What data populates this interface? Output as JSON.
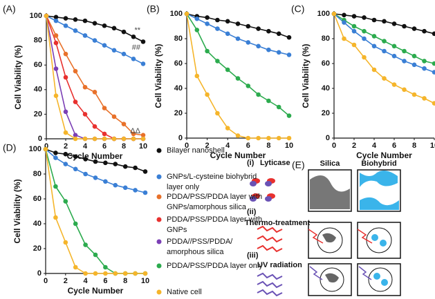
{
  "chart_data": [
    {
      "type": "line",
      "label": "(A)",
      "xlabel": "Cycle Number",
      "ylabel": "Cell Viability (%)",
      "x": [
        0,
        1,
        2,
        3,
        4,
        5,
        6,
        7,
        8,
        9,
        10
      ],
      "xlim": [
        0,
        10
      ],
      "ylim": [
        0,
        100
      ],
      "xticks": [
        0,
        2,
        4,
        6,
        8,
        10
      ],
      "yticks": [
        0,
        20,
        40,
        60,
        80,
        100
      ],
      "annotations": [
        "**",
        "##",
        "ΔΔ"
      ],
      "series": [
        {
          "color": "#111111",
          "values": [
            100,
            99,
            98,
            97,
            96,
            94,
            92,
            90,
            87,
            83,
            79
          ]
        },
        {
          "color": "#3a7fd5",
          "values": [
            100,
            96,
            92,
            88,
            84,
            80,
            76,
            72,
            69,
            65,
            61
          ]
        },
        {
          "color": "#e8712a",
          "values": [
            100,
            84,
            69,
            55,
            42,
            38,
            25,
            18,
            12,
            4,
            3
          ]
        },
        {
          "color": "#e8312f",
          "values": [
            100,
            78,
            50,
            30,
            20,
            10,
            4,
            0,
            0,
            0,
            0
          ]
        },
        {
          "color": "#7b3fb5",
          "values": [
            100,
            57,
            22,
            3,
            0,
            0,
            0,
            0,
            0,
            0,
            0
          ]
        },
        {
          "color": "#f5b52b",
          "values": [
            100,
            35,
            5,
            0,
            0,
            0,
            0,
            0,
            0,
            0,
            0
          ]
        }
      ]
    },
    {
      "type": "line",
      "label": "(B)",
      "xlabel": "Cycle Number",
      "ylabel": "Cell Viability (%)",
      "x": [
        0,
        1,
        2,
        3,
        4,
        5,
        6,
        7,
        8,
        9,
        10
      ],
      "xlim": [
        0,
        10
      ],
      "ylim": [
        0,
        100
      ],
      "xticks": [
        0,
        2,
        4,
        6,
        8,
        10
      ],
      "yticks": [
        0,
        20,
        40,
        60,
        80,
        100
      ],
      "series": [
        {
          "color": "#111111",
          "values": [
            100,
            98,
            97,
            95,
            94,
            92,
            90,
            88,
            86,
            84,
            81
          ]
        },
        {
          "color": "#3a7fd5",
          "values": [
            100,
            96,
            92,
            88,
            84,
            80,
            77,
            74,
            71,
            69,
            67
          ]
        },
        {
          "color": "#2cab4e",
          "values": [
            100,
            87,
            70,
            62,
            55,
            48,
            42,
            35,
            30,
            25,
            18
          ]
        },
        {
          "color": "#f5b52b",
          "values": [
            100,
            50,
            35,
            20,
            8,
            2,
            0,
            0,
            0,
            0,
            0
          ]
        }
      ]
    },
    {
      "type": "line",
      "label": "(C)",
      "xlabel": "Cycle Number",
      "ylabel": "Cell Viability (%)",
      "x": [
        0,
        1,
        2,
        3,
        4,
        5,
        6,
        7,
        8,
        9,
        10
      ],
      "xlim": [
        0,
        10
      ],
      "ylim": [
        0,
        100
      ],
      "xticks": [
        0,
        2,
        4,
        6,
        8,
        10
      ],
      "yticks": [
        0,
        20,
        40,
        60,
        80,
        100
      ],
      "series": [
        {
          "color": "#111111",
          "values": [
            100,
            99,
            98,
            97,
            95,
            94,
            92,
            90,
            88,
            86,
            84
          ]
        },
        {
          "color": "#2cab4e",
          "values": [
            100,
            95,
            90,
            86,
            82,
            78,
            74,
            70,
            66,
            62,
            60
          ]
        },
        {
          "color": "#3a7fd5",
          "values": [
            100,
            93,
            86,
            80,
            74,
            70,
            66,
            62,
            59,
            56,
            53
          ]
        },
        {
          "color": "#f5b52b",
          "values": [
            100,
            80,
            75,
            65,
            55,
            48,
            43,
            39,
            35,
            32,
            28
          ]
        }
      ]
    },
    {
      "type": "line",
      "label": "(D)",
      "xlabel": "Cycle Number",
      "ylabel": "Cell Viability (%)",
      "x": [
        0,
        1,
        2,
        3,
        4,
        5,
        6,
        7,
        8,
        9,
        10
      ],
      "xlim": [
        0,
        10
      ],
      "ylim": [
        0,
        100
      ],
      "xticks": [
        0,
        2,
        4,
        6,
        8,
        10
      ],
      "yticks": [
        0,
        20,
        40,
        60,
        80,
        100
      ],
      "series": [
        {
          "color": "#111111",
          "values": [
            100,
            97,
            96,
            94,
            92,
            90,
            89,
            88,
            86,
            85,
            82
          ]
        },
        {
          "color": "#3a7fd5",
          "values": [
            100,
            93,
            88,
            84,
            80,
            77,
            74,
            71,
            69,
            67,
            65
          ]
        },
        {
          "color": "#2cab4e",
          "values": [
            100,
            70,
            58,
            40,
            23,
            15,
            5,
            0,
            0,
            0,
            0
          ]
        },
        {
          "color": "#f5b52b",
          "values": [
            100,
            45,
            25,
            5,
            0,
            0,
            0,
            0,
            0,
            0,
            0
          ]
        }
      ]
    }
  ],
  "legend": {
    "items": [
      {
        "color": "#111111",
        "lines": [
          "Bilayer nanoshell"
        ]
      },
      {
        "color": "#3a7fd5",
        "lines": [
          "GNPs/L-cysteine biohybrid",
          "layer only"
        ]
      },
      {
        "color": "#e8712a",
        "lines": [
          "PDDA/PSS/PDDA layer with",
          "GNPs/amorphous silica"
        ]
      },
      {
        "color": "#e8312f",
        "lines": [
          "PDDA/PSS/PDDA layer with",
          "GNPs"
        ]
      },
      {
        "color": "#7b3fb5",
        "lines": [
          "PDDA//PSS/PDDA/",
          "amorphous silica"
        ]
      },
      {
        "color": "#2cab4e",
        "lines": [
          "PDDA/PSS/PDDA layer only"
        ]
      },
      {
        "color": "#f5b52b",
        "lines": [
          "Native cell"
        ]
      }
    ]
  },
  "diagram": {
    "label": "(E)",
    "columns": [
      "Silica",
      "Biohybrid"
    ],
    "rows": [
      {
        "num": "(i)",
        "name": "Lyticase"
      },
      {
        "num": "(ii)",
        "name": "Thermo-treatment"
      },
      {
        "num": "(iii)",
        "name": "UV radiation"
      }
    ]
  }
}
